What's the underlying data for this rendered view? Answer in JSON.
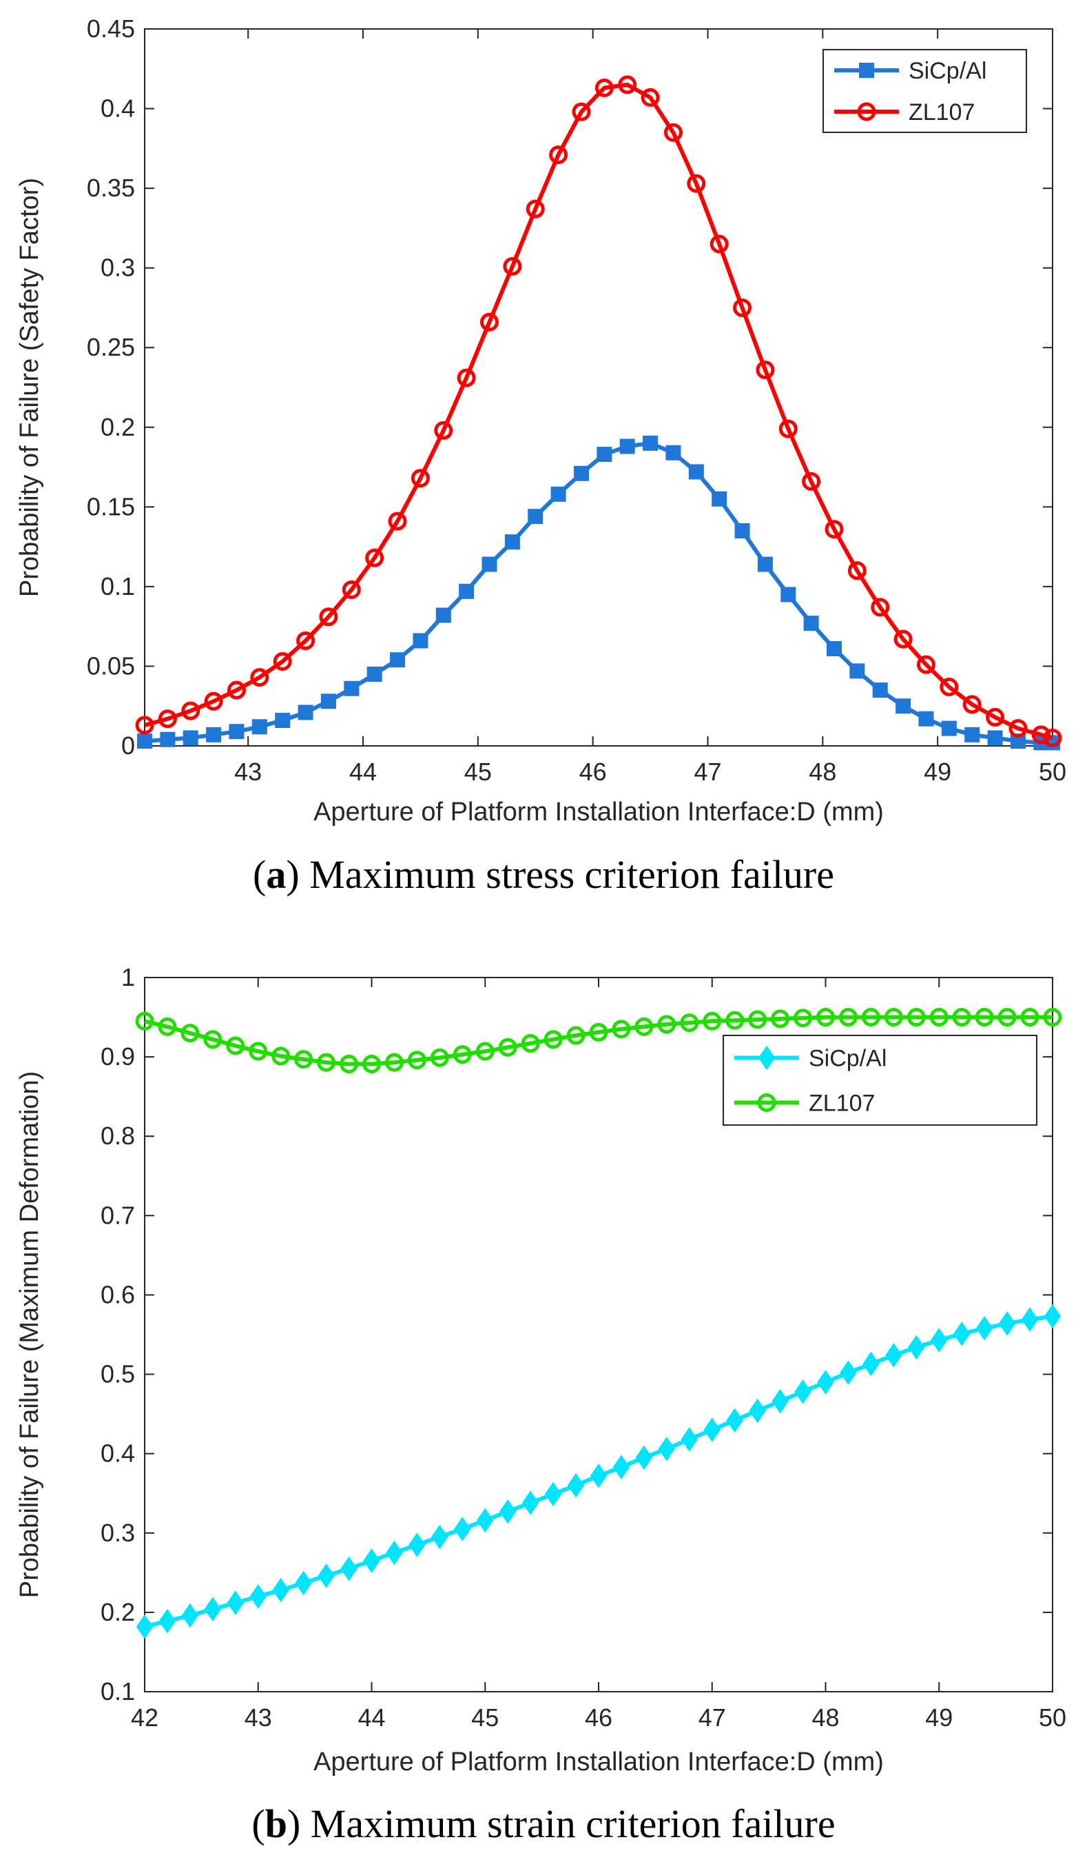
{
  "chart_data": [
    {
      "type": "line",
      "panel_label": "a",
      "caption": "Maximum stress criterion failure",
      "xlabel": "Aperture of Platform Installation Interface:D (mm)",
      "ylabel": "Probability of Failure (Safety Factor)",
      "xlim": [
        42.1,
        50
      ],
      "ylim": [
        0,
        0.45
      ],
      "xticks": [
        43,
        44,
        45,
        46,
        47,
        48,
        49,
        50
      ],
      "yticks": [
        0,
        0.05,
        0.1,
        0.15,
        0.2,
        0.25,
        0.3,
        0.35,
        0.4,
        0.45
      ],
      "ytick_labels": [
        "0",
        "0.05",
        "0.1",
        "0.15",
        "0.2",
        "0.25",
        "0.3",
        "0.35",
        "0.4",
        "0.45"
      ],
      "legend_position": "top-right",
      "grid": false,
      "series": [
        {
          "name": "SiCp/Al",
          "color": "#1f77d8",
          "marker": "square",
          "x": [
            42.1,
            42.3,
            42.5,
            42.7,
            42.9,
            43.1,
            43.3,
            43.5,
            43.7,
            43.9,
            44.1,
            44.3,
            44.5,
            44.7,
            44.9,
            45.1,
            45.3,
            45.5,
            45.7,
            45.9,
            46.1,
            46.3,
            46.5,
            46.7,
            46.9,
            47.1,
            47.3,
            47.5,
            47.7,
            47.9,
            48.1,
            48.3,
            48.5,
            48.7,
            48.9,
            49.1,
            49.3,
            49.5,
            49.7,
            49.9,
            50.0
          ],
          "y": [
            0.003,
            0.004,
            0.005,
            0.007,
            0.009,
            0.012,
            0.016,
            0.021,
            0.028,
            0.036,
            0.045,
            0.054,
            0.066,
            0.082,
            0.097,
            0.114,
            0.128,
            0.144,
            0.158,
            0.171,
            0.183,
            0.188,
            0.19,
            0.184,
            0.172,
            0.155,
            0.135,
            0.114,
            0.095,
            0.077,
            0.061,
            0.047,
            0.035,
            0.025,
            0.017,
            0.011,
            0.007,
            0.005,
            0.003,
            0.002,
            0.002
          ]
        },
        {
          "name": "ZL107",
          "color": "#ff0000",
          "marker": "circle",
          "x": [
            42.1,
            42.3,
            42.5,
            42.7,
            42.9,
            43.1,
            43.3,
            43.5,
            43.7,
            43.9,
            44.1,
            44.3,
            44.5,
            44.7,
            44.9,
            45.1,
            45.3,
            45.5,
            45.7,
            45.9,
            46.1,
            46.3,
            46.5,
            46.7,
            46.9,
            47.1,
            47.3,
            47.5,
            47.7,
            47.9,
            48.1,
            48.3,
            48.5,
            48.7,
            48.9,
            49.1,
            49.3,
            49.5,
            49.7,
            49.9,
            50.0
          ],
          "y": [
            0.013,
            0.017,
            0.022,
            0.028,
            0.035,
            0.043,
            0.053,
            0.066,
            0.081,
            0.098,
            0.118,
            0.141,
            0.168,
            0.198,
            0.231,
            0.266,
            0.301,
            0.337,
            0.371,
            0.398,
            0.413,
            0.415,
            0.407,
            0.385,
            0.353,
            0.315,
            0.275,
            0.236,
            0.199,
            0.166,
            0.136,
            0.11,
            0.087,
            0.067,
            0.051,
            0.037,
            0.026,
            0.018,
            0.011,
            0.007,
            0.005
          ]
        }
      ]
    },
    {
      "type": "line",
      "panel_label": "b",
      "caption": "Maximum strain criterion failure",
      "xlabel": "Aperture of Platform Installation Interface:D (mm)",
      "ylabel": "Probability of Failure (Maximum Deformation)",
      "xlim": [
        42,
        50
      ],
      "ylim": [
        0.1,
        1
      ],
      "xticks": [
        42,
        43,
        44,
        45,
        46,
        47,
        48,
        49,
        50
      ],
      "yticks": [
        0.1,
        0.2,
        0.3,
        0.4,
        0.5,
        0.6,
        0.7,
        0.8,
        0.9,
        1
      ],
      "ytick_labels": [
        "0.1",
        "0.2",
        "0.3",
        "0.4",
        "0.5",
        "0.6",
        "0.7",
        "0.8",
        "0.9",
        "1"
      ],
      "legend_position": "upper-right",
      "grid": false,
      "series": [
        {
          "name": "SiCp/Al",
          "color": "#00e5ff",
          "marker": "diamond",
          "x": [
            42.0,
            42.2,
            42.4,
            42.6,
            42.8,
            43.0,
            43.2,
            43.4,
            43.6,
            43.8,
            44.0,
            44.2,
            44.4,
            44.6,
            44.8,
            45.0,
            45.2,
            45.4,
            45.6,
            45.8,
            46.0,
            46.2,
            46.4,
            46.6,
            46.8,
            47.0,
            47.2,
            47.4,
            47.6,
            47.8,
            48.0,
            48.2,
            48.4,
            48.6,
            48.8,
            49.0,
            49.2,
            49.4,
            49.6,
            49.8,
            50.0
          ],
          "y": [
            0.182,
            0.189,
            0.196,
            0.204,
            0.212,
            0.22,
            0.228,
            0.237,
            0.246,
            0.255,
            0.265,
            0.275,
            0.285,
            0.295,
            0.305,
            0.316,
            0.327,
            0.338,
            0.349,
            0.36,
            0.372,
            0.383,
            0.395,
            0.406,
            0.418,
            0.43,
            0.442,
            0.454,
            0.466,
            0.478,
            0.49,
            0.502,
            0.513,
            0.524,
            0.534,
            0.543,
            0.551,
            0.558,
            0.564,
            0.569,
            0.573
          ]
        },
        {
          "name": "ZL107",
          "color": "#22dd00",
          "marker": "circle",
          "x": [
            42.0,
            42.2,
            42.4,
            42.6,
            42.8,
            43.0,
            43.2,
            43.4,
            43.6,
            43.8,
            44.0,
            44.2,
            44.4,
            44.6,
            44.8,
            45.0,
            45.2,
            45.4,
            45.6,
            45.8,
            46.0,
            46.2,
            46.4,
            46.6,
            46.8,
            47.0,
            47.2,
            47.4,
            47.6,
            47.8,
            48.0,
            48.2,
            48.4,
            48.6,
            48.8,
            49.0,
            49.2,
            49.4,
            49.6,
            49.8,
            50.0
          ],
          "y": [
            0.945,
            0.938,
            0.93,
            0.922,
            0.914,
            0.907,
            0.901,
            0.897,
            0.893,
            0.891,
            0.891,
            0.893,
            0.896,
            0.899,
            0.903,
            0.907,
            0.912,
            0.917,
            0.922,
            0.927,
            0.931,
            0.935,
            0.938,
            0.941,
            0.943,
            0.945,
            0.946,
            0.947,
            0.948,
            0.949,
            0.95,
            0.95,
            0.95,
            0.95,
            0.95,
            0.95,
            0.95,
            0.95,
            0.95,
            0.95,
            0.95
          ]
        }
      ]
    }
  ]
}
